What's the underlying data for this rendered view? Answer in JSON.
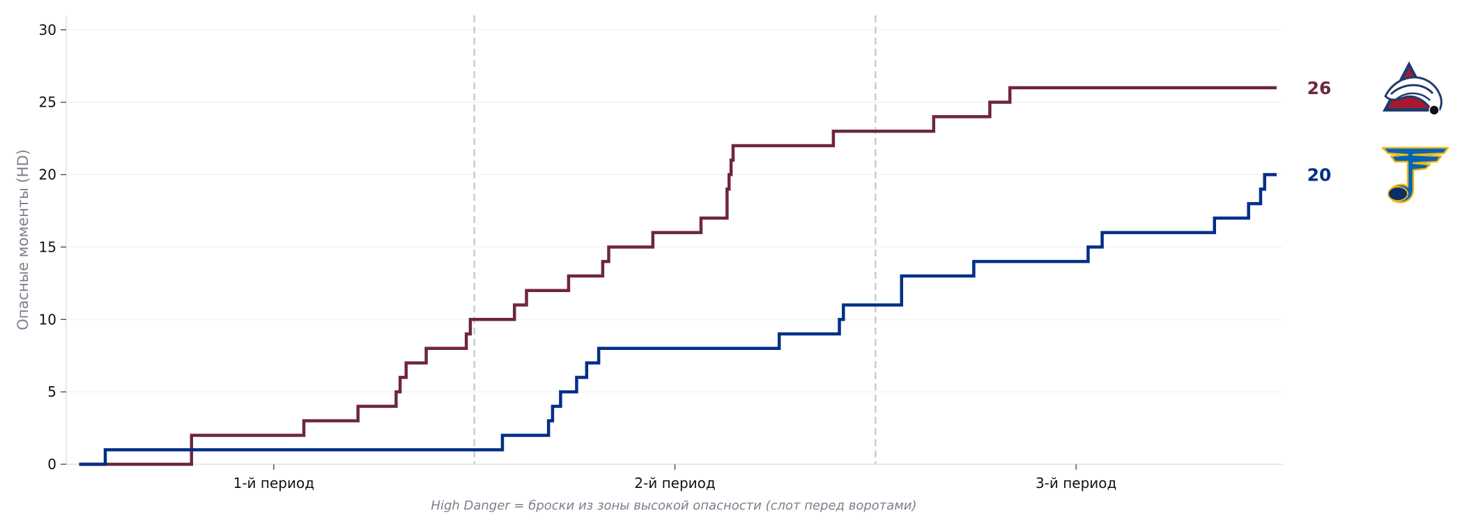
{
  "chart_data": {
    "type": "line",
    "step": true,
    "ylabel": "Опасные моменты (HD)",
    "footnote": "High Danger = броски из зоны высокой опасности (слот перед воротами)",
    "x_unit": "минуты",
    "xlim": [
      0,
      60
    ],
    "ylim": [
      0,
      31
    ],
    "yticks": [
      0,
      5,
      10,
      15,
      20,
      25,
      30
    ],
    "period_labels": [
      {
        "label": "1-й период",
        "x": 10
      },
      {
        "label": "2-й период",
        "x": 30
      },
      {
        "label": "3-й период",
        "x": 50
      }
    ],
    "period_dividers": [
      20,
      40
    ],
    "grid": "horizontal",
    "colors": {
      "grid": "#f0f0f0",
      "divider": "#c4ccd8",
      "axis": "#dddddd"
    },
    "series": [
      {
        "team": "Colorado Avalanche",
        "color": "#6f263d",
        "final_label": "26",
        "logo_icon": "avalanche-logo-icon",
        "points": [
          [
            0.3,
            0
          ],
          [
            5.9,
            2
          ],
          [
            11.5,
            3
          ],
          [
            14.2,
            4
          ],
          [
            16.1,
            5
          ],
          [
            16.3,
            6
          ],
          [
            16.6,
            7
          ],
          [
            17.6,
            8
          ],
          [
            19.6,
            9
          ],
          [
            19.8,
            10
          ],
          [
            22.0,
            11
          ],
          [
            22.6,
            12
          ],
          [
            24.7,
            13
          ],
          [
            26.4,
            14
          ],
          [
            26.7,
            15
          ],
          [
            28.9,
            16
          ],
          [
            31.3,
            17
          ],
          [
            32.6,
            19
          ],
          [
            32.7,
            20
          ],
          [
            32.8,
            21
          ],
          [
            32.9,
            22
          ],
          [
            37.9,
            23
          ],
          [
            42.9,
            24
          ],
          [
            45.7,
            25
          ],
          [
            46.7,
            26
          ],
          [
            60.0,
            26
          ]
        ]
      },
      {
        "team": "St. Louis Blues",
        "color": "#002f87",
        "final_label": "20",
        "logo_icon": "blues-logo-icon",
        "points": [
          [
            0.3,
            0
          ],
          [
            1.6,
            1
          ],
          [
            21.4,
            2
          ],
          [
            23.7,
            3
          ],
          [
            23.9,
            4
          ],
          [
            24.3,
            5
          ],
          [
            25.1,
            6
          ],
          [
            25.6,
            7
          ],
          [
            26.2,
            8
          ],
          [
            35.2,
            9
          ],
          [
            38.2,
            10
          ],
          [
            38.4,
            11
          ],
          [
            41.3,
            13
          ],
          [
            44.9,
            14
          ],
          [
            50.6,
            15
          ],
          [
            51.3,
            16
          ],
          [
            56.9,
            17
          ],
          [
            58.6,
            18
          ],
          [
            59.2,
            19
          ],
          [
            59.4,
            20
          ],
          [
            60.0,
            20
          ]
        ]
      }
    ]
  }
}
